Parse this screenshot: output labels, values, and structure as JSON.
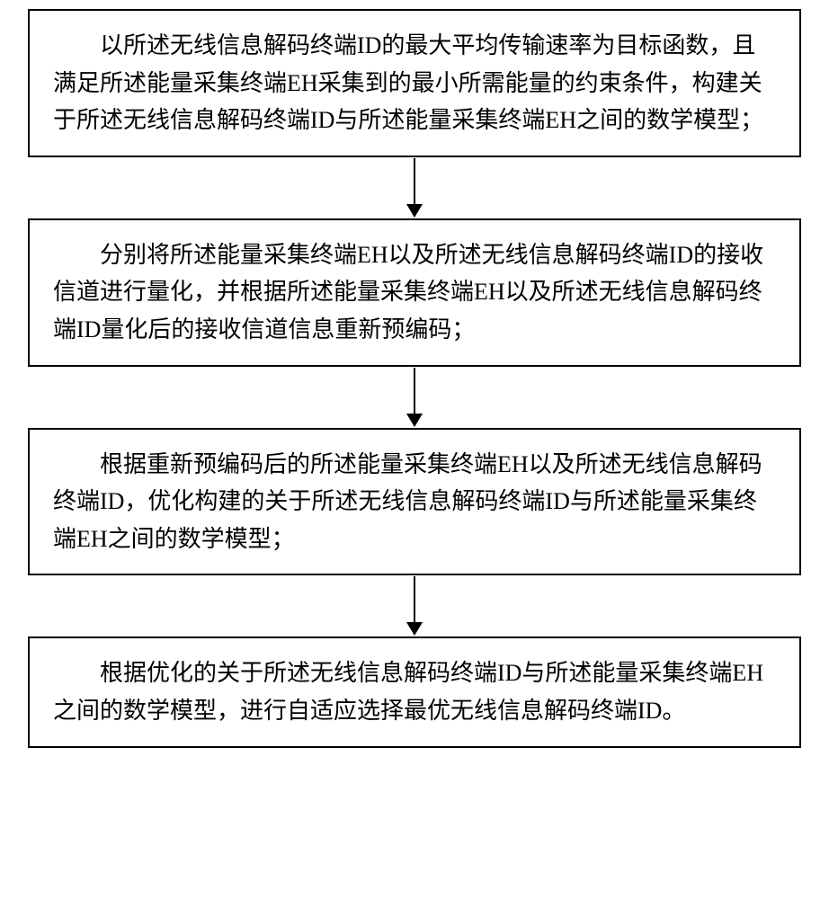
{
  "flowchart": {
    "type": "flowchart",
    "direction": "vertical",
    "background_color": "#ffffff",
    "box_border_color": "#000000",
    "box_border_width": 2,
    "arrow_color": "#000000",
    "font_family": "SimSun",
    "font_size": 26,
    "text_indent": "2em",
    "nodes": [
      {
        "id": "step1",
        "text": "以所述无线信息解码终端ID的最大平均传输速率为目标函数，且满足所述能量采集终端EH采集到的最小所需能量的约束条件，构建关于所述无线信息解码终端ID与所述能量采集终端EH之间的数学模型；"
      },
      {
        "id": "step2",
        "text": "分别将所述能量采集终端EH以及所述无线信息解码终端ID的接收信道进行量化，并根据所述能量采集终端EH以及所述无线信息解码终端ID量化后的接收信道信息重新预编码；"
      },
      {
        "id": "step3",
        "text": "根据重新预编码后的所述能量采集终端EH以及所述无线信息解码终端ID，优化构建的关于所述无线信息解码终端ID与所述能量采集终端EH之间的数学模型；"
      },
      {
        "id": "step4",
        "text": "根据优化的关于所述无线信息解码终端ID与所述能量采集终端EH之间的数学模型，进行自适应选择最优无线信息解码终端ID。"
      }
    ],
    "edges": [
      {
        "from": "step1",
        "to": "step2"
      },
      {
        "from": "step2",
        "to": "step3"
      },
      {
        "from": "step3",
        "to": "step4"
      }
    ]
  }
}
